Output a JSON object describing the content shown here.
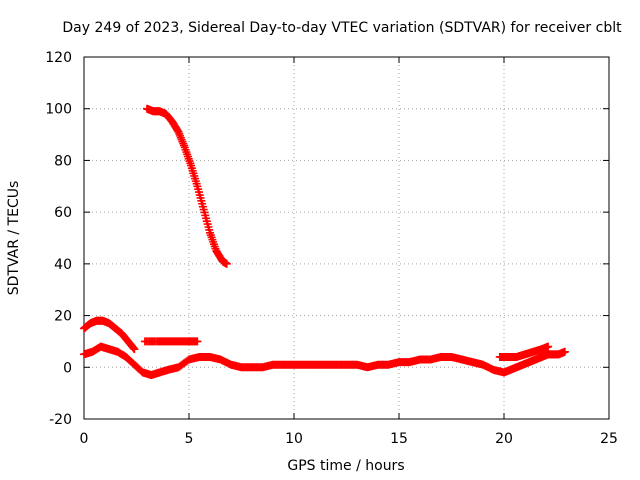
{
  "chart_data": {
    "type": "scatter",
    "title": "Day 249 of 2023, Sidereal Day-to-day VTEC variation (SDTVAR) for receiver cblt",
    "xlabel": "GPS time / hours",
    "ylabel": "SDTVAR / TECUs",
    "xlim": [
      0,
      25
    ],
    "ylim": [
      -20,
      120
    ],
    "xticks": [
      0,
      5,
      10,
      15,
      20,
      25
    ],
    "yticks": [
      -20,
      0,
      20,
      40,
      60,
      80,
      100,
      120
    ],
    "grid": true,
    "marker": "plus",
    "color": "#ff0000",
    "series": [
      {
        "name": "arc-high-descent",
        "x": [
          3.0,
          3.3,
          3.6,
          3.9,
          4.2,
          4.5,
          4.8,
          5.1,
          5.4,
          5.7,
          6.0,
          6.3,
          6.6,
          6.8
        ],
        "y": [
          100,
          99,
          99,
          98,
          95,
          91,
          85,
          78,
          70,
          61,
          52,
          45,
          41,
          40
        ]
      },
      {
        "name": "arc-early-hump",
        "x": [
          0.0,
          0.3,
          0.6,
          0.9,
          1.2,
          1.5,
          1.8,
          2.1,
          2.4
        ],
        "y": [
          15,
          17,
          18,
          18,
          17,
          15,
          13,
          10,
          7
        ]
      },
      {
        "name": "arc-flat-ten",
        "x": [
          2.9,
          3.5,
          4.0,
          4.5,
          5.0,
          5.4
        ],
        "y": [
          10,
          10,
          10,
          10,
          10,
          10
        ]
      },
      {
        "name": "arc-main-low",
        "x": [
          0.0,
          0.4,
          0.8,
          1.2,
          1.6,
          2.0,
          2.4,
          2.8,
          3.2,
          3.6,
          4.0,
          4.5,
          5.0,
          5.5,
          6.0,
          6.5,
          7.0,
          7.5,
          8.0,
          8.5,
          9.0,
          9.5,
          10.0,
          10.5,
          11.0,
          11.5,
          12.0,
          12.5,
          13.0,
          13.5,
          14.0,
          14.5,
          15.0,
          15.5,
          16.0,
          16.5,
          17.0,
          17.5,
          18.0,
          18.5,
          19.0,
          19.5,
          20.0,
          20.3,
          20.6,
          20.9,
          21.2,
          21.5,
          21.8,
          22.1
        ],
        "y": [
          5,
          6,
          8,
          7,
          6,
          4,
          1,
          -2,
          -3,
          -2,
          -1,
          0,
          3,
          4,
          4,
          3,
          1,
          0,
          0,
          0,
          1,
          1,
          1,
          1,
          1,
          1,
          1,
          1,
          1,
          0,
          1,
          1,
          2,
          2,
          3,
          3,
          4,
          4,
          3,
          2,
          1,
          -1,
          -2,
          -1,
          0,
          1,
          2,
          3,
          4,
          5
        ]
      },
      {
        "name": "arc-late-rise",
        "x": [
          19.8,
          20.2,
          20.6,
          21.0,
          21.4,
          21.8,
          22.1
        ],
        "y": [
          4,
          4,
          4,
          5,
          6,
          7,
          8
        ]
      },
      {
        "name": "arc-end-pair",
        "x": [
          22.0,
          22.3,
          22.6,
          22.9
        ],
        "y": [
          5,
          5,
          5,
          6
        ]
      }
    ]
  }
}
